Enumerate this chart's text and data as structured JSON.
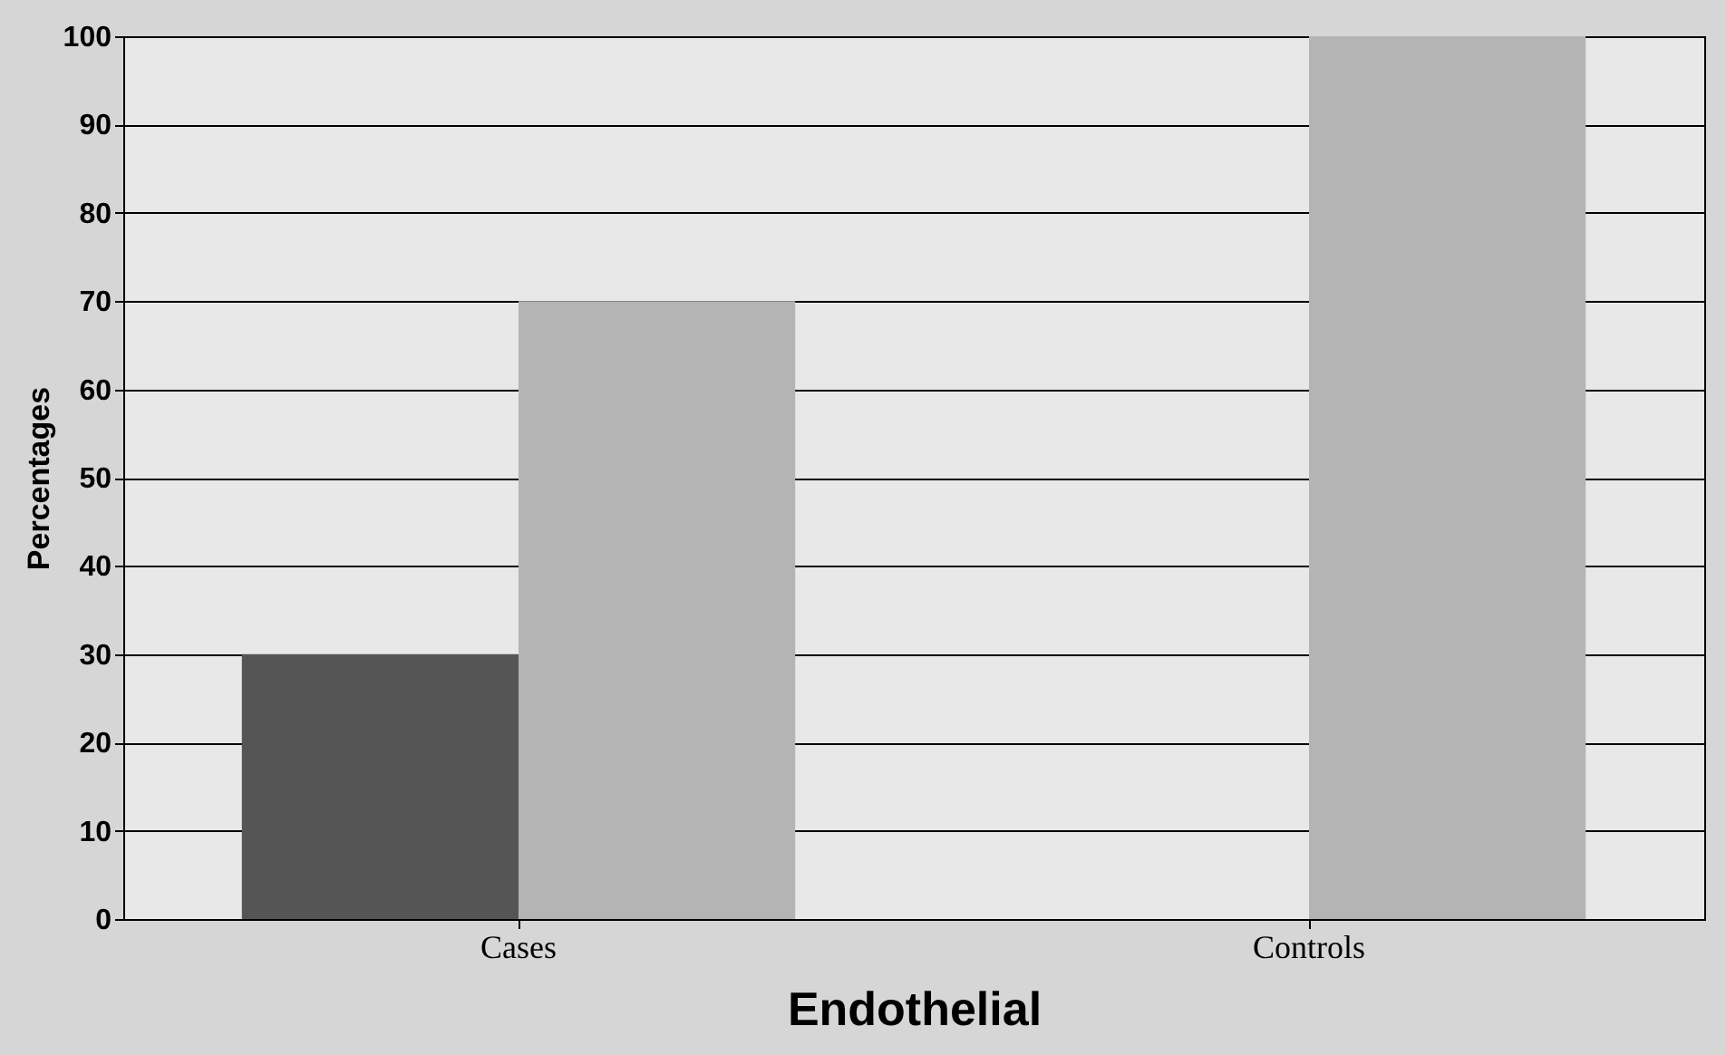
{
  "chart_data": {
    "type": "bar",
    "categories": [
      "Cases",
      "Controls"
    ],
    "series": [
      {
        "color": "#555555",
        "values": [
          30,
          0
        ]
      },
      {
        "color": "#b4b4b4",
        "values": [
          70,
          100
        ]
      }
    ],
    "xlabel": "Endothelial",
    "ylabel": "Percentages",
    "ylim": [
      0,
      100
    ],
    "yticks": [
      0,
      10,
      20,
      30,
      40,
      50,
      60,
      70,
      80,
      90,
      100
    ],
    "grid": "y"
  }
}
